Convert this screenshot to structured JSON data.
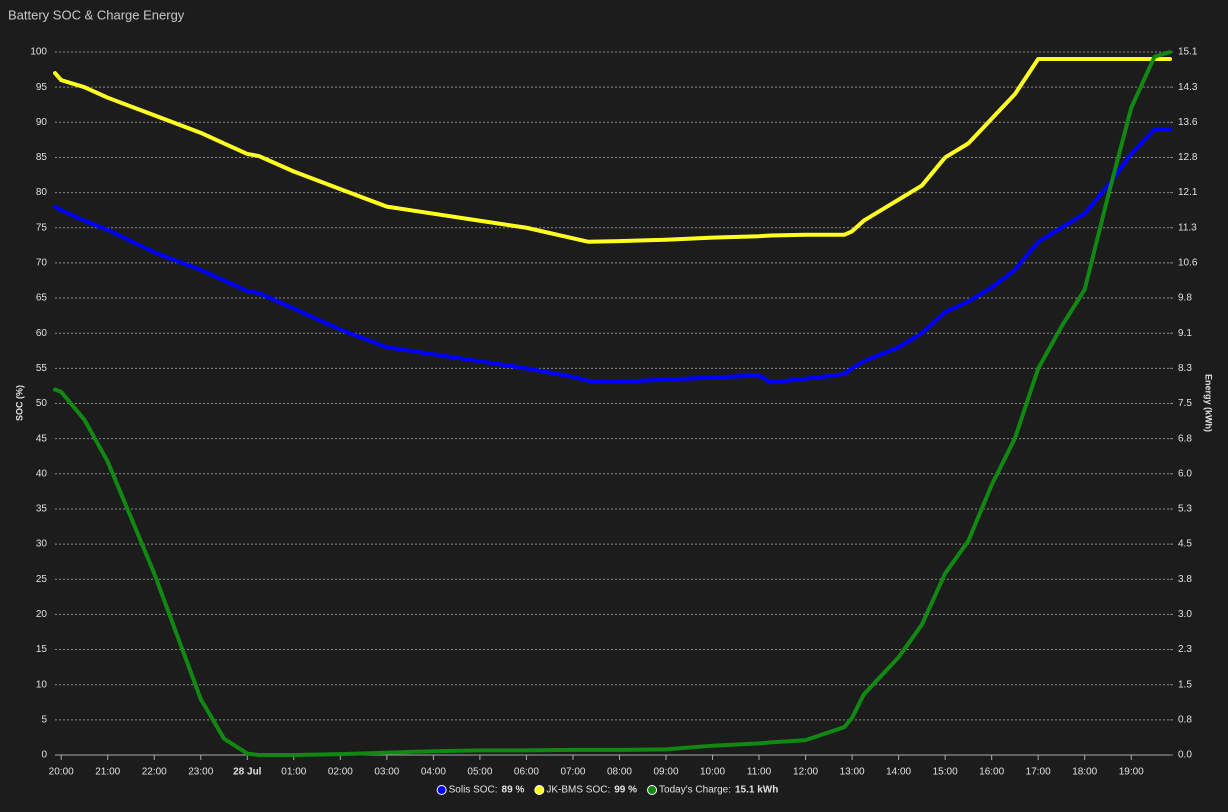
{
  "chart_data": {
    "type": "line",
    "title": "Battery SOC & Charge Energy",
    "y_label": "SOC (%)",
    "y2_label": "Energy (kWh)",
    "x": [
      "19:52",
      "20:00",
      "20:30",
      "21:00",
      "22:00",
      "23:00",
      "23:30",
      "00:00",
      "00:15",
      "01:00",
      "02:00",
      "03:00",
      "04:00",
      "05:00",
      "06:00",
      "07:00",
      "07:20",
      "08:00",
      "09:00",
      "10:00",
      "11:00",
      "11:15",
      "12:00",
      "12:50",
      "13:00",
      "13:15",
      "14:00",
      "14:30",
      "15:00",
      "15:30",
      "16:00",
      "16:30",
      "17:00",
      "17:30",
      "18:00",
      "18:30",
      "19:00",
      "19:30",
      "19:50"
    ],
    "xlim": [
      "19:52",
      "19:50"
    ],
    "xticks": [
      "20:00",
      "21:00",
      "22:00",
      "23:00",
      {
        "value": "00:00",
        "label": "28 Jul"
      },
      "01:00",
      "02:00",
      "03:00",
      "04:00",
      "05:00",
      "06:00",
      "07:00",
      "08:00",
      "09:00",
      "10:00",
      "11:00",
      "12:00",
      "13:00",
      "14:00",
      "15:00",
      "16:00",
      "17:00",
      "18:00",
      "19:00"
    ],
    "ylim": [
      0,
      100
    ],
    "yticks": [
      0,
      5,
      10,
      15,
      20,
      25,
      30,
      35,
      40,
      45,
      50,
      55,
      60,
      65,
      70,
      75,
      80,
      85,
      90,
      95,
      100
    ],
    "y2lim": [
      0,
      15.1
    ],
    "y2ticks": [
      {
        "value": 0,
        "label": "0.0"
      },
      {
        "value": 0.755,
        "label": "0.8"
      },
      {
        "value": 1.51,
        "label": "1.5"
      },
      {
        "value": 2.265,
        "label": "2.3"
      },
      {
        "value": 3.02,
        "label": "3.0"
      },
      {
        "value": 3.775,
        "label": "3.8"
      },
      {
        "value": 4.53,
        "label": "4.5"
      },
      {
        "value": 5.285,
        "label": "5.3"
      },
      {
        "value": 6.04,
        "label": "6.0"
      },
      {
        "value": 6.795,
        "label": "6.8"
      },
      {
        "value": 7.55,
        "label": "7.5"
      },
      {
        "value": 8.305,
        "label": "8.3"
      },
      {
        "value": 9.06,
        "label": "9.1"
      },
      {
        "value": 9.815,
        "label": "9.8"
      },
      {
        "value": 10.57,
        "label": "10.6"
      },
      {
        "value": 11.325,
        "label": "11.3"
      },
      {
        "value": 12.08,
        "label": "12.1"
      },
      {
        "value": 12.835,
        "label": "12.8"
      },
      {
        "value": 13.59,
        "label": "13.6"
      },
      {
        "value": 14.345,
        "label": "14.3"
      },
      {
        "value": 15.1,
        "label": "15.1"
      }
    ],
    "grid": true,
    "legend": "bottom",
    "series": [
      {
        "name": "Solis SOC:",
        "current": "89 %",
        "color": "#0000ff",
        "values": [
          78,
          77.5,
          76,
          74.7,
          71.5,
          69,
          67.5,
          66,
          65.7,
          63.5,
          60.5,
          58,
          57,
          56,
          55,
          53.8,
          53.2,
          53.1,
          53.4,
          53.7,
          54,
          53,
          53.5,
          54.2,
          55,
          56,
          58,
          60,
          63,
          64.5,
          66.5,
          69,
          73,
          75,
          77,
          81,
          85.5,
          89,
          89
        ]
      },
      {
        "name": "JK-BMS SOC:",
        "current": "99 %",
        "color": "#ffff22",
        "values": [
          97,
          96,
          95,
          93.5,
          91,
          88.5,
          87,
          85.5,
          85.2,
          83,
          80.5,
          78,
          77,
          76,
          75,
          73.5,
          73,
          73.1,
          73.3,
          73.6,
          73.8,
          73.9,
          74,
          74,
          74.5,
          76,
          79,
          81,
          85,
          87,
          90.5,
          94,
          99,
          99,
          99,
          99,
          99,
          99,
          99
        ]
      },
      {
        "name": "Today's Charge:",
        "current": "15.1 kWh",
        "color": "#118811",
        "axis": "y2",
        "values": [
          7.85,
          7.8,
          7.2,
          6.3,
          3.9,
          1.2,
          0.35,
          0.03,
          0,
          0,
          0.02,
          0.05,
          0.08,
          0.1,
          0.1,
          0.11,
          0.11,
          0.11,
          0.12,
          0.2,
          0.25,
          0.27,
          0.32,
          0.6,
          0.8,
          1.3,
          2.1,
          2.8,
          3.9,
          4.6,
          5.8,
          6.8,
          8.3,
          9.2,
          10.0,
          12.0,
          13.9,
          15.0,
          15.1
        ]
      }
    ]
  }
}
